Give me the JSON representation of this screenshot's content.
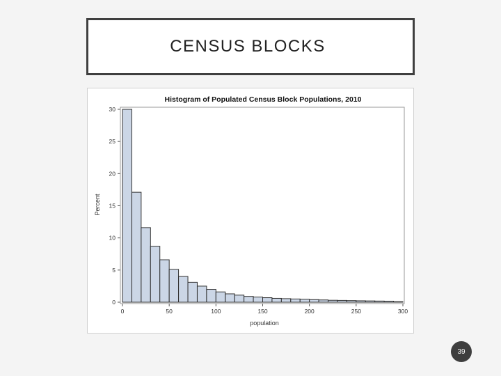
{
  "slide": {
    "title": "CENSUS BLOCKS",
    "page_number": "39"
  },
  "chart_data": {
    "type": "bar",
    "title": "Histogram of Populated Census Block Populations, 2010",
    "xlabel": "population",
    "ylabel": "Percent",
    "xlim": [
      0,
      300
    ],
    "ylim": [
      0,
      30
    ],
    "xticks": [
      0,
      50,
      100,
      150,
      200,
      250,
      300
    ],
    "yticks": [
      0,
      5,
      10,
      15,
      20,
      25,
      30
    ],
    "bin_width": 10,
    "bins": [
      {
        "x0": 0,
        "x1": 10,
        "value": 30.0
      },
      {
        "x0": 10,
        "x1": 20,
        "value": 17.1
      },
      {
        "x0": 20,
        "x1": 30,
        "value": 11.6
      },
      {
        "x0": 30,
        "x1": 40,
        "value": 8.7
      },
      {
        "x0": 40,
        "x1": 50,
        "value": 6.6
      },
      {
        "x0": 50,
        "x1": 60,
        "value": 5.1
      },
      {
        "x0": 60,
        "x1": 70,
        "value": 4.0
      },
      {
        "x0": 70,
        "x1": 80,
        "value": 3.1
      },
      {
        "x0": 80,
        "x1": 90,
        "value": 2.5
      },
      {
        "x0": 90,
        "x1": 100,
        "value": 2.0
      },
      {
        "x0": 100,
        "x1": 110,
        "value": 1.6
      },
      {
        "x0": 110,
        "x1": 120,
        "value": 1.3
      },
      {
        "x0": 120,
        "x1": 130,
        "value": 1.1
      },
      {
        "x0": 130,
        "x1": 140,
        "value": 0.9
      },
      {
        "x0": 140,
        "x1": 150,
        "value": 0.8
      },
      {
        "x0": 150,
        "x1": 160,
        "value": 0.7
      },
      {
        "x0": 160,
        "x1": 170,
        "value": 0.6
      },
      {
        "x0": 170,
        "x1": 180,
        "value": 0.55
      },
      {
        "x0": 180,
        "x1": 190,
        "value": 0.5
      },
      {
        "x0": 190,
        "x1": 200,
        "value": 0.45
      },
      {
        "x0": 200,
        "x1": 210,
        "value": 0.4
      },
      {
        "x0": 210,
        "x1": 220,
        "value": 0.35
      },
      {
        "x0": 220,
        "x1": 230,
        "value": 0.3
      },
      {
        "x0": 230,
        "x1": 240,
        "value": 0.28
      },
      {
        "x0": 240,
        "x1": 250,
        "value": 0.25
      },
      {
        "x0": 250,
        "x1": 260,
        "value": 0.22
      },
      {
        "x0": 260,
        "x1": 270,
        "value": 0.2
      },
      {
        "x0": 270,
        "x1": 280,
        "value": 0.18
      },
      {
        "x0": 280,
        "x1": 290,
        "value": 0.16
      },
      {
        "x0": 290,
        "x1": 300,
        "value": 0.08
      }
    ],
    "bar_fill": "#cbd6e6",
    "bar_stroke": "#2f2f2f",
    "grid": false
  }
}
